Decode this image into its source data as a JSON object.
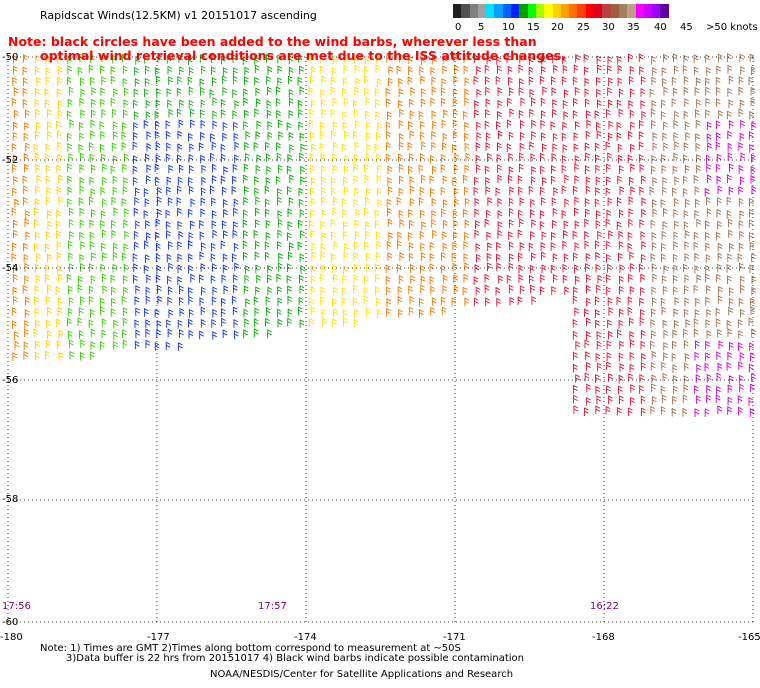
{
  "title": "Rapidscat Winds(12.5KM) v1 20151017 ascending",
  "note_line1": "Note: black circles have been added to the wind barbs, wherever less than",
  "note_line2": "optimal wind retrieval conditions are met due to the ISS attitude changes.",
  "colorbar": {
    "labels": [
      "0",
      "5",
      "10",
      "15",
      "20",
      "25",
      "30",
      "35",
      "40",
      "45",
      ">50 knots"
    ],
    "colors": [
      "#202020",
      "#505050",
      "#808080",
      "#a0a0a0",
      "#00e0ff",
      "#00a0ff",
      "#0060ff",
      "#0020ff",
      "#00a000",
      "#00ff00",
      "#a0ff00",
      "#ffff00",
      "#ffd000",
      "#ffa000",
      "#ff7000",
      "#ff4000",
      "#ff0000",
      "#e00020",
      "#c04040",
      "#a06040",
      "#a08060",
      "#c0a080",
      "#ff00ff",
      "#d000ff",
      "#a000ff",
      "#6000a0"
    ]
  },
  "lat_labels": [
    "-50",
    "-52",
    "-54",
    "-56",
    "-58",
    "-60"
  ],
  "lon_labels": [
    "-180",
    "-177",
    "-174",
    "-171",
    "-168",
    "-165"
  ],
  "time_labels": [
    "17:56",
    "17:57",
    "16:22"
  ],
  "footnote_line1": "Note: 1) Times are GMT 2)Times along bottom correspond to measurement at ~50S",
  "footnote_line2": "3)Data buffer is 22 hrs from 20151017 4) Black wind barbs indicate possible contamination",
  "credit": "NOAA/NESDIS/Center for Satellite Applications and Research"
}
